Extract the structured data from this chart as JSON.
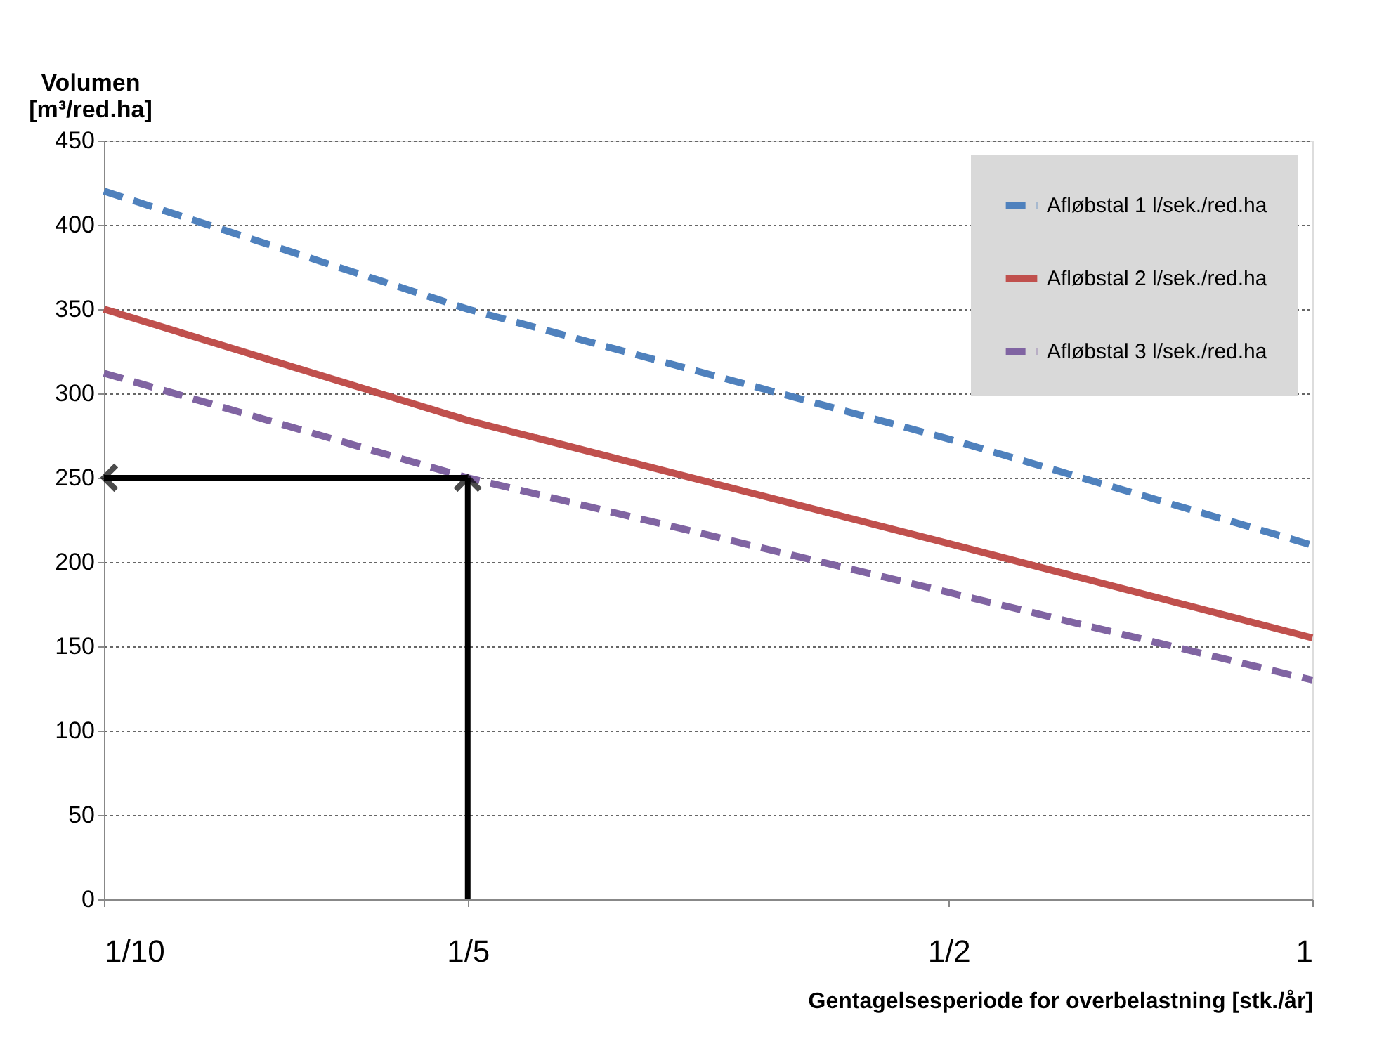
{
  "chart_data": {
    "type": "line",
    "xlabel": "Gentagelsesperiode for overbelastning [stk./år]",
    "ylabel": "Volumen\n[m³/red.ha]",
    "x": [
      0.1,
      0.2,
      0.5,
      1
    ],
    "series": [
      {
        "name": "Afløbstal 1 l/sek./red.ha",
        "color": "#4f81bd",
        "line_style": "dashed",
        "values": [
          420,
          350,
          273,
          210
        ]
      },
      {
        "name": "Afløbstal 2 l/sek./red.ha",
        "color": "#c0504d",
        "line_style": "solid",
        "values": [
          350,
          284,
          211,
          155
        ]
      },
      {
        "name": "Afløbstal 3 l/sek./red.ha",
        "color": "#8064a2",
        "line_style": "dashed",
        "values": [
          312,
          250,
          182,
          130
        ]
      }
    ],
    "log": "x",
    "xlim": [
      0.1,
      1
    ],
    "xticks": [
      {
        "value": 0.1,
        "label": "1/10"
      },
      {
        "value": 0.2,
        "label": "1/5"
      },
      {
        "value": 0.5,
        "label": "1/2"
      },
      1
    ],
    "ylim": [
      0,
      450
    ],
    "yticks": [
      0,
      50,
      100,
      150,
      200,
      250,
      300,
      350,
      400,
      450
    ],
    "grid": "y",
    "legend": "top right",
    "marker": "none"
  }
}
